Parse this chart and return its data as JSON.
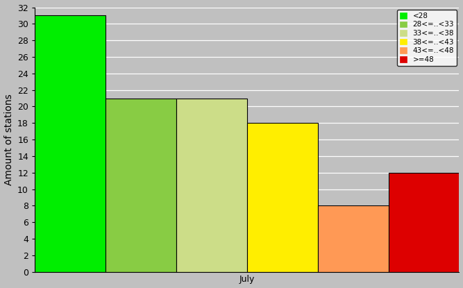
{
  "bars": [
    {
      "label": "<28",
      "value": 31,
      "color": "#00ee00"
    },
    {
      "label": "28<=..<33",
      "value": 21,
      "color": "#88cc44"
    },
    {
      "label": "33<=..<38",
      "value": 21,
      "color": "#ccdd88"
    },
    {
      "label": "38<=..<43",
      "value": 18,
      "color": "#ffee00"
    },
    {
      "label": "43<=..<48",
      "value": 8,
      "color": "#ff9955"
    },
    {
      "label": ">=48",
      "value": 12,
      "color": "#dd0000"
    }
  ],
  "ylabel": "Amount of stations",
  "xlabel": "July",
  "ylim": [
    0,
    32
  ],
  "yticks": [
    0,
    2,
    4,
    6,
    8,
    10,
    12,
    14,
    16,
    18,
    20,
    22,
    24,
    26,
    28,
    30,
    32
  ],
  "bg_color": "#c0c0c0",
  "plot_bg_color": "#b8b8b8",
  "legend_fontsize": 7.5,
  "axis_label_fontsize": 10,
  "tick_fontsize": 9
}
